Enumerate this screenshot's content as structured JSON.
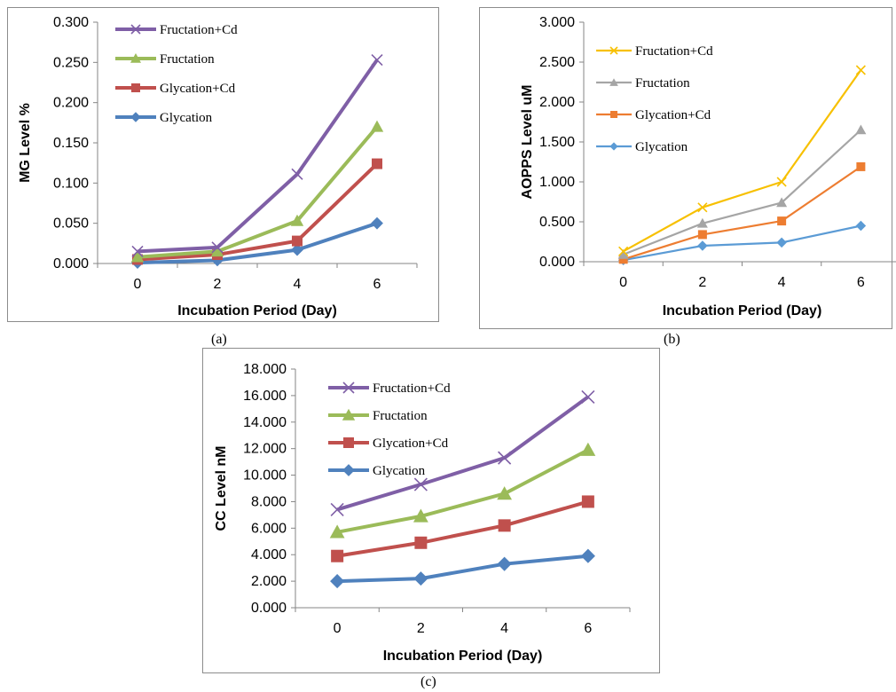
{
  "chart_data": [
    {
      "type": "line",
      "id": "a",
      "caption": "(a)",
      "xlabel": "Incubation Period (Day)",
      "ylabel": "MG Level %",
      "x": [
        0,
        2,
        4,
        6
      ],
      "ylim": [
        0,
        0.3
      ],
      "yticks": [
        "0.000",
        "0.050",
        "0.100",
        "0.150",
        "0.200",
        "0.250",
        "0.300"
      ],
      "legend_position": "top-left",
      "series": [
        {
          "name": "Fructation+Cd",
          "color": "#7f5fa6",
          "marker": "x",
          "values": [
            0.015,
            0.02,
            0.111,
            0.253
          ]
        },
        {
          "name": "Fructation",
          "color": "#9bbb59",
          "marker": "triangle",
          "values": [
            0.008,
            0.015,
            0.053,
            0.17
          ]
        },
        {
          "name": "Glycation+Cd",
          "color": "#c0504d",
          "marker": "square",
          "values": [
            0.005,
            0.011,
            0.028,
            0.124
          ]
        },
        {
          "name": "Glycation",
          "color": "#4f81bd",
          "marker": "diamond",
          "values": [
            0.001,
            0.004,
            0.017,
            0.05
          ]
        }
      ]
    },
    {
      "type": "line",
      "id": "b",
      "caption": "(b)",
      "xlabel": "Incubation Period (Day)",
      "ylabel": "AOPPS Level uM",
      "x": [
        0,
        2,
        4,
        6
      ],
      "ylim": [
        0,
        3
      ],
      "yticks": [
        "0.000",
        "0.500",
        "1.000",
        "1.500",
        "2.000",
        "2.500",
        "3.000"
      ],
      "legend_position": "top-left",
      "series": [
        {
          "name": "Fructation+Cd",
          "color": "#f7c000",
          "marker": "x",
          "values": [
            0.13,
            0.68,
            1.0,
            2.4
          ]
        },
        {
          "name": "Fructation",
          "color": "#a5a5a5",
          "marker": "triangle",
          "values": [
            0.09,
            0.48,
            0.74,
            1.65
          ]
        },
        {
          "name": "Glycation+Cd",
          "color": "#ed7d31",
          "marker": "square",
          "values": [
            0.03,
            0.34,
            0.51,
            1.19
          ]
        },
        {
          "name": "Glycation",
          "color": "#5b9bd5",
          "marker": "diamond",
          "values": [
            0.02,
            0.2,
            0.24,
            0.45
          ]
        }
      ]
    },
    {
      "type": "line",
      "id": "c",
      "caption": "(c)",
      "xlabel": "Incubation Period (Day)",
      "ylabel": "CC Level nM",
      "x": [
        0,
        2,
        4,
        6
      ],
      "ylim": [
        0,
        18
      ],
      "yticks": [
        "0.000",
        "2.000",
        "4.000",
        "6.000",
        "8.000",
        "10.000",
        "12.000",
        "14.000",
        "16.000",
        "18.000"
      ],
      "legend_position": "top-left",
      "series": [
        {
          "name": "Fructation+Cd",
          "color": "#7f5fa6",
          "marker": "x",
          "values": [
            7.4,
            9.3,
            11.3,
            15.9
          ]
        },
        {
          "name": "Fructation",
          "color": "#9bbb59",
          "marker": "triangle",
          "values": [
            5.7,
            6.9,
            8.6,
            11.9
          ]
        },
        {
          "name": "Glycation+Cd",
          "color": "#c0504d",
          "marker": "square",
          "values": [
            3.9,
            4.9,
            6.2,
            8.0
          ]
        },
        {
          "name": "Glycation",
          "color": "#4f81bd",
          "marker": "diamond",
          "values": [
            2.0,
            2.2,
            3.3,
            3.9
          ]
        }
      ]
    }
  ]
}
